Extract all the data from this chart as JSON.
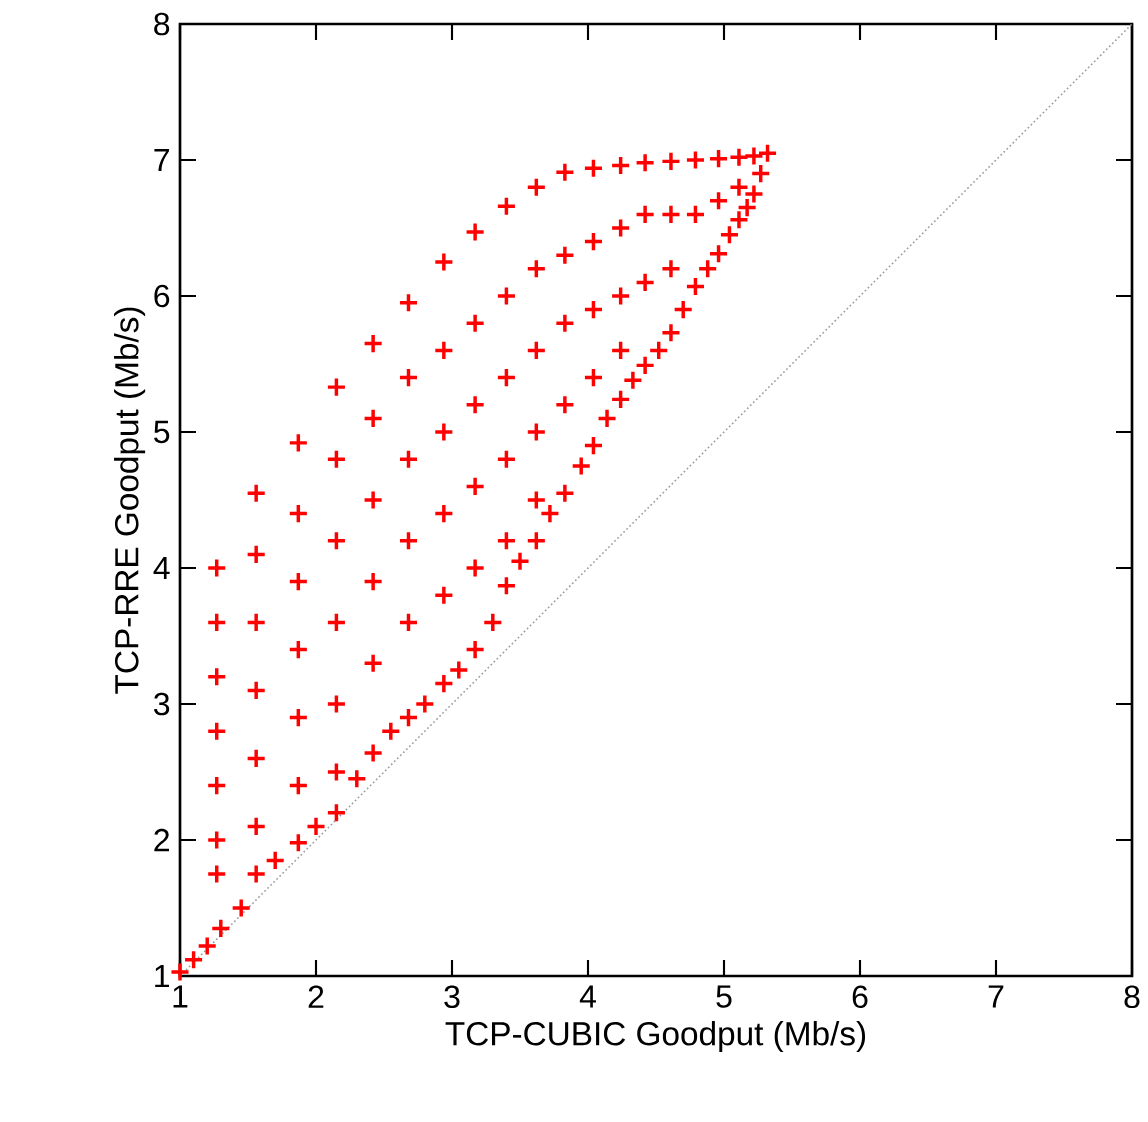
{
  "chart_data": {
    "type": "scatter",
    "xlabel": "TCP-CUBIC Goodput (Mb/s)",
    "ylabel": "TCP-RRE Goodput (Mb/s)",
    "xlim": [
      1,
      8
    ],
    "ylim": [
      1,
      8
    ],
    "xticks": [
      1,
      2,
      3,
      4,
      5,
      6,
      7,
      8
    ],
    "yticks": [
      1,
      2,
      3,
      4,
      5,
      6,
      7,
      8
    ],
    "series": [
      {
        "color": "#ff0000",
        "marker": "cross",
        "x": [
          1.27,
          1.27,
          1.27,
          1.27,
          1.27,
          1.27,
          1.27,
          1.56,
          1.56,
          1.56,
          1.56,
          1.56,
          1.56,
          1.56,
          1.87,
          1.87,
          1.87,
          1.87,
          1.87,
          1.87,
          1.87,
          2.15,
          2.15,
          2.15,
          2.15,
          2.15,
          2.15,
          2.15,
          2.42,
          2.42,
          2.42,
          2.42,
          2.42,
          2.42,
          2.68,
          2.68,
          2.68,
          2.68,
          2.68,
          2.68,
          2.94,
          2.94,
          2.94,
          2.94,
          2.94,
          2.94,
          3.17,
          3.17,
          3.17,
          3.17,
          3.17,
          3.17,
          3.4,
          3.4,
          3.4,
          3.4,
          3.4,
          3.4,
          3.62,
          3.62,
          3.62,
          3.62,
          3.62,
          3.62,
          3.83,
          3.83,
          3.83,
          3.83,
          3.83,
          4.04,
          4.04,
          4.04,
          4.04,
          4.04,
          4.24,
          4.24,
          4.24,
          4.24,
          4.24,
          4.42,
          4.42,
          4.42,
          4.42,
          4.61,
          4.61,
          4.61,
          4.61,
          4.79,
          4.79,
          4.79,
          4.96,
          4.96,
          4.96,
          5.11,
          5.11,
          5.11,
          5.22,
          5.22,
          5.32,
          1.0,
          1.1,
          1.2,
          1.3,
          1.45,
          1.7,
          2.0,
          2.3,
          2.55,
          2.8,
          3.05,
          3.3,
          3.5,
          3.72,
          3.95,
          4.14,
          4.33,
          4.52,
          4.7,
          4.88,
          5.04,
          5.17,
          5.27
        ],
        "values": [
          4.0,
          3.6,
          3.2,
          2.8,
          2.4,
          2.0,
          1.75,
          4.55,
          4.1,
          3.6,
          3.1,
          2.6,
          2.1,
          1.75,
          4.92,
          4.4,
          3.9,
          3.4,
          2.9,
          2.4,
          1.98,
          5.33,
          4.8,
          4.2,
          3.6,
          3.0,
          2.5,
          2.2,
          5.65,
          5.1,
          4.5,
          3.9,
          3.3,
          2.64,
          5.95,
          5.4,
          4.8,
          4.2,
          3.6,
          2.9,
          6.25,
          5.6,
          5.0,
          4.4,
          3.8,
          3.15,
          6.47,
          5.8,
          5.2,
          4.6,
          4.0,
          3.4,
          6.66,
          6.0,
          5.4,
          4.8,
          4.2,
          3.87,
          6.8,
          6.2,
          5.6,
          5.0,
          4.5,
          4.2,
          6.91,
          6.3,
          5.8,
          5.2,
          4.55,
          6.94,
          6.4,
          5.9,
          5.4,
          4.9,
          6.96,
          6.5,
          6.0,
          5.6,
          5.24,
          6.98,
          6.6,
          6.1,
          5.49,
          6.99,
          6.6,
          6.2,
          5.73,
          7.0,
          6.6,
          6.07,
          7.01,
          6.7,
          6.31,
          7.02,
          6.8,
          6.56,
          7.03,
          6.75,
          7.05,
          1.03,
          1.12,
          1.22,
          1.35,
          1.5,
          1.85,
          2.1,
          2.45,
          2.8,
          3.0,
          3.25,
          3.6,
          4.05,
          4.4,
          4.75,
          5.1,
          5.38,
          5.6,
          5.9,
          6.2,
          6.45,
          6.65,
          6.9
        ]
      },
      {
        "type": "line",
        "color": "#999999",
        "line_style": "dotted",
        "x": [
          1,
          8
        ],
        "values": [
          1,
          8
        ]
      }
    ]
  }
}
